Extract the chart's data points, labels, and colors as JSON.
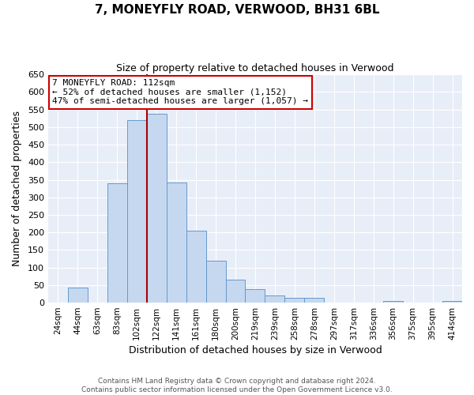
{
  "title": "7, MONEYFLY ROAD, VERWOOD, BH31 6BL",
  "subtitle": "Size of property relative to detached houses in Verwood",
  "xlabel": "Distribution of detached houses by size in Verwood",
  "ylabel": "Number of detached properties",
  "bar_labels": [
    "24sqm",
    "44sqm",
    "63sqm",
    "83sqm",
    "102sqm",
    "122sqm",
    "141sqm",
    "161sqm",
    "180sqm",
    "200sqm",
    "219sqm",
    "239sqm",
    "258sqm",
    "278sqm",
    "297sqm",
    "317sqm",
    "336sqm",
    "356sqm",
    "375sqm",
    "395sqm",
    "414sqm"
  ],
  "bar_values": [
    0,
    42,
    0,
    340,
    519,
    537,
    343,
    205,
    120,
    65,
    38,
    20,
    13,
    13,
    0,
    0,
    0,
    4,
    0,
    0,
    4
  ],
  "bar_color": "#c5d8f0",
  "bar_edge_color": "#6699cc",
  "ylim": [
    0,
    650
  ],
  "yticks": [
    0,
    50,
    100,
    150,
    200,
    250,
    300,
    350,
    400,
    450,
    500,
    550,
    600,
    650
  ],
  "vline_color": "#aa0000",
  "annotation_title": "7 MONEYFLY ROAD: 112sqm",
  "annotation_line1": "← 52% of detached houses are smaller (1,152)",
  "annotation_line2": "47% of semi-detached houses are larger (1,057) →",
  "annotation_box_color": "#ffffff",
  "annotation_border_color": "#cc0000",
  "footer1": "Contains HM Land Registry data © Crown copyright and database right 2024.",
  "footer2": "Contains public sector information licensed under the Open Government Licence v3.0.",
  "background_color": "#e8eef8",
  "grid_color": "#ffffff"
}
